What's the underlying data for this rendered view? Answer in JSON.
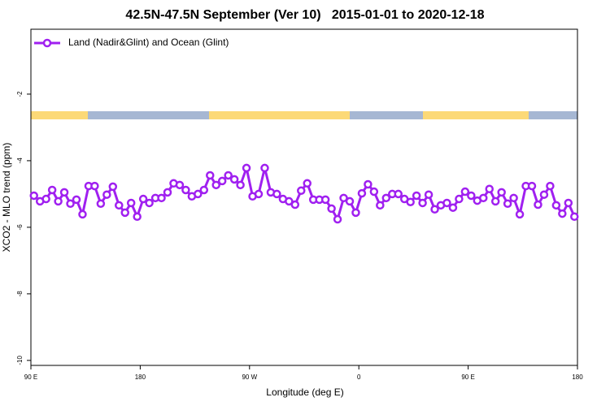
{
  "chart_data": {
    "type": "line",
    "title": "42.5N-47.5N September (Ver 10)   2015-01-01 to 2020-12-18",
    "x_label": "Longitude (deg E)",
    "y_label": "XCO2 - MLO trend (ppm)",
    "x": [
      92.5,
      97.5,
      102.5,
      107.5,
      112.5,
      117.5,
      122.5,
      127.5,
      132.5,
      137.5,
      142.5,
      147.5,
      152.5,
      157.5,
      162.5,
      167.5,
      172.5,
      177.5,
      182.5,
      187.5,
      192.5,
      197.5,
      202.5,
      207.5,
      212.5,
      217.5,
      222.5,
      227.5,
      232.5,
      237.5,
      242.5,
      247.5,
      252.5,
      257.5,
      262.5,
      267.5,
      272.5,
      277.5,
      282.5,
      287.5,
      292.5,
      297.5,
      302.5,
      307.5,
      312.5,
      317.5,
      322.5,
      327.5,
      332.5,
      337.5,
      342.5,
      347.5,
      352.5,
      357.5,
      362.5,
      367.5,
      372.5,
      377.5,
      382.5,
      387.5,
      392.5,
      397.5,
      402.5,
      407.5,
      412.5,
      417.5,
      422.5,
      427.5,
      432.5,
      437.5,
      442.5,
      447.5,
      452.5,
      457.5,
      462.5,
      467.5,
      472.5,
      477.5,
      482.5,
      487.5,
      492.5,
      497.5,
      502.5,
      507.5,
      512.5,
      517.5,
      522.5,
      527.5,
      532.5,
      537.5
    ],
    "series": [
      {
        "name": "Land (Nadir&Glint) and Ocean (Glint)",
        "color": "#a020f0",
        "values": [
          -5.05,
          -5.22,
          -5.15,
          -4.88,
          -5.22,
          -4.95,
          -5.29,
          -5.17,
          -5.61,
          -4.76,
          -4.76,
          -5.29,
          -5.02,
          -4.78,
          -5.34,
          -5.56,
          -5.27,
          -5.68,
          -5.15,
          -5.27,
          -5.12,
          -5.12,
          -4.95,
          -4.68,
          -4.73,
          -4.88,
          -5.07,
          -5.0,
          -4.88,
          -4.44,
          -4.73,
          -4.61,
          -4.44,
          -4.56,
          -4.73,
          -4.22,
          -5.07,
          -5.0,
          -4.22,
          -4.95,
          -5.0,
          -5.15,
          -5.22,
          -5.32,
          -4.9,
          -4.68,
          -5.17,
          -5.17,
          -5.17,
          -5.44,
          -5.76,
          -5.12,
          -5.22,
          -5.56,
          -4.98,
          -4.71,
          -4.93,
          -5.34,
          -5.12,
          -5.0,
          -5.0,
          -5.15,
          -5.24,
          -5.05,
          -5.27,
          -5.02,
          -5.46,
          -5.34,
          -5.27,
          -5.41,
          -5.15,
          -4.93,
          -5.05,
          -5.2,
          -5.12,
          -4.85,
          -5.22,
          -4.95,
          -5.29,
          -5.12,
          -5.61,
          -4.76,
          -4.76,
          -5.32,
          -5.02,
          -4.76,
          -5.34,
          -5.59,
          -5.27,
          -5.68
        ]
      }
    ],
    "xlim": [
      90,
      540
    ],
    "xticks": [
      {
        "value": 90,
        "label": "90 E"
      },
      180,
      {
        "value": 270,
        "label": "90 W"
      },
      {
        "value": 360,
        "label": "0"
      },
      {
        "value": 450,
        "label": "90 E"
      },
      {
        "value": 540,
        "label": "180"
      }
    ],
    "ylim": [
      -10.15,
      -0.05
    ],
    "yticks": [
      -2,
      -4,
      -6,
      -8,
      -10
    ],
    "legend": "topleft"
  }
}
